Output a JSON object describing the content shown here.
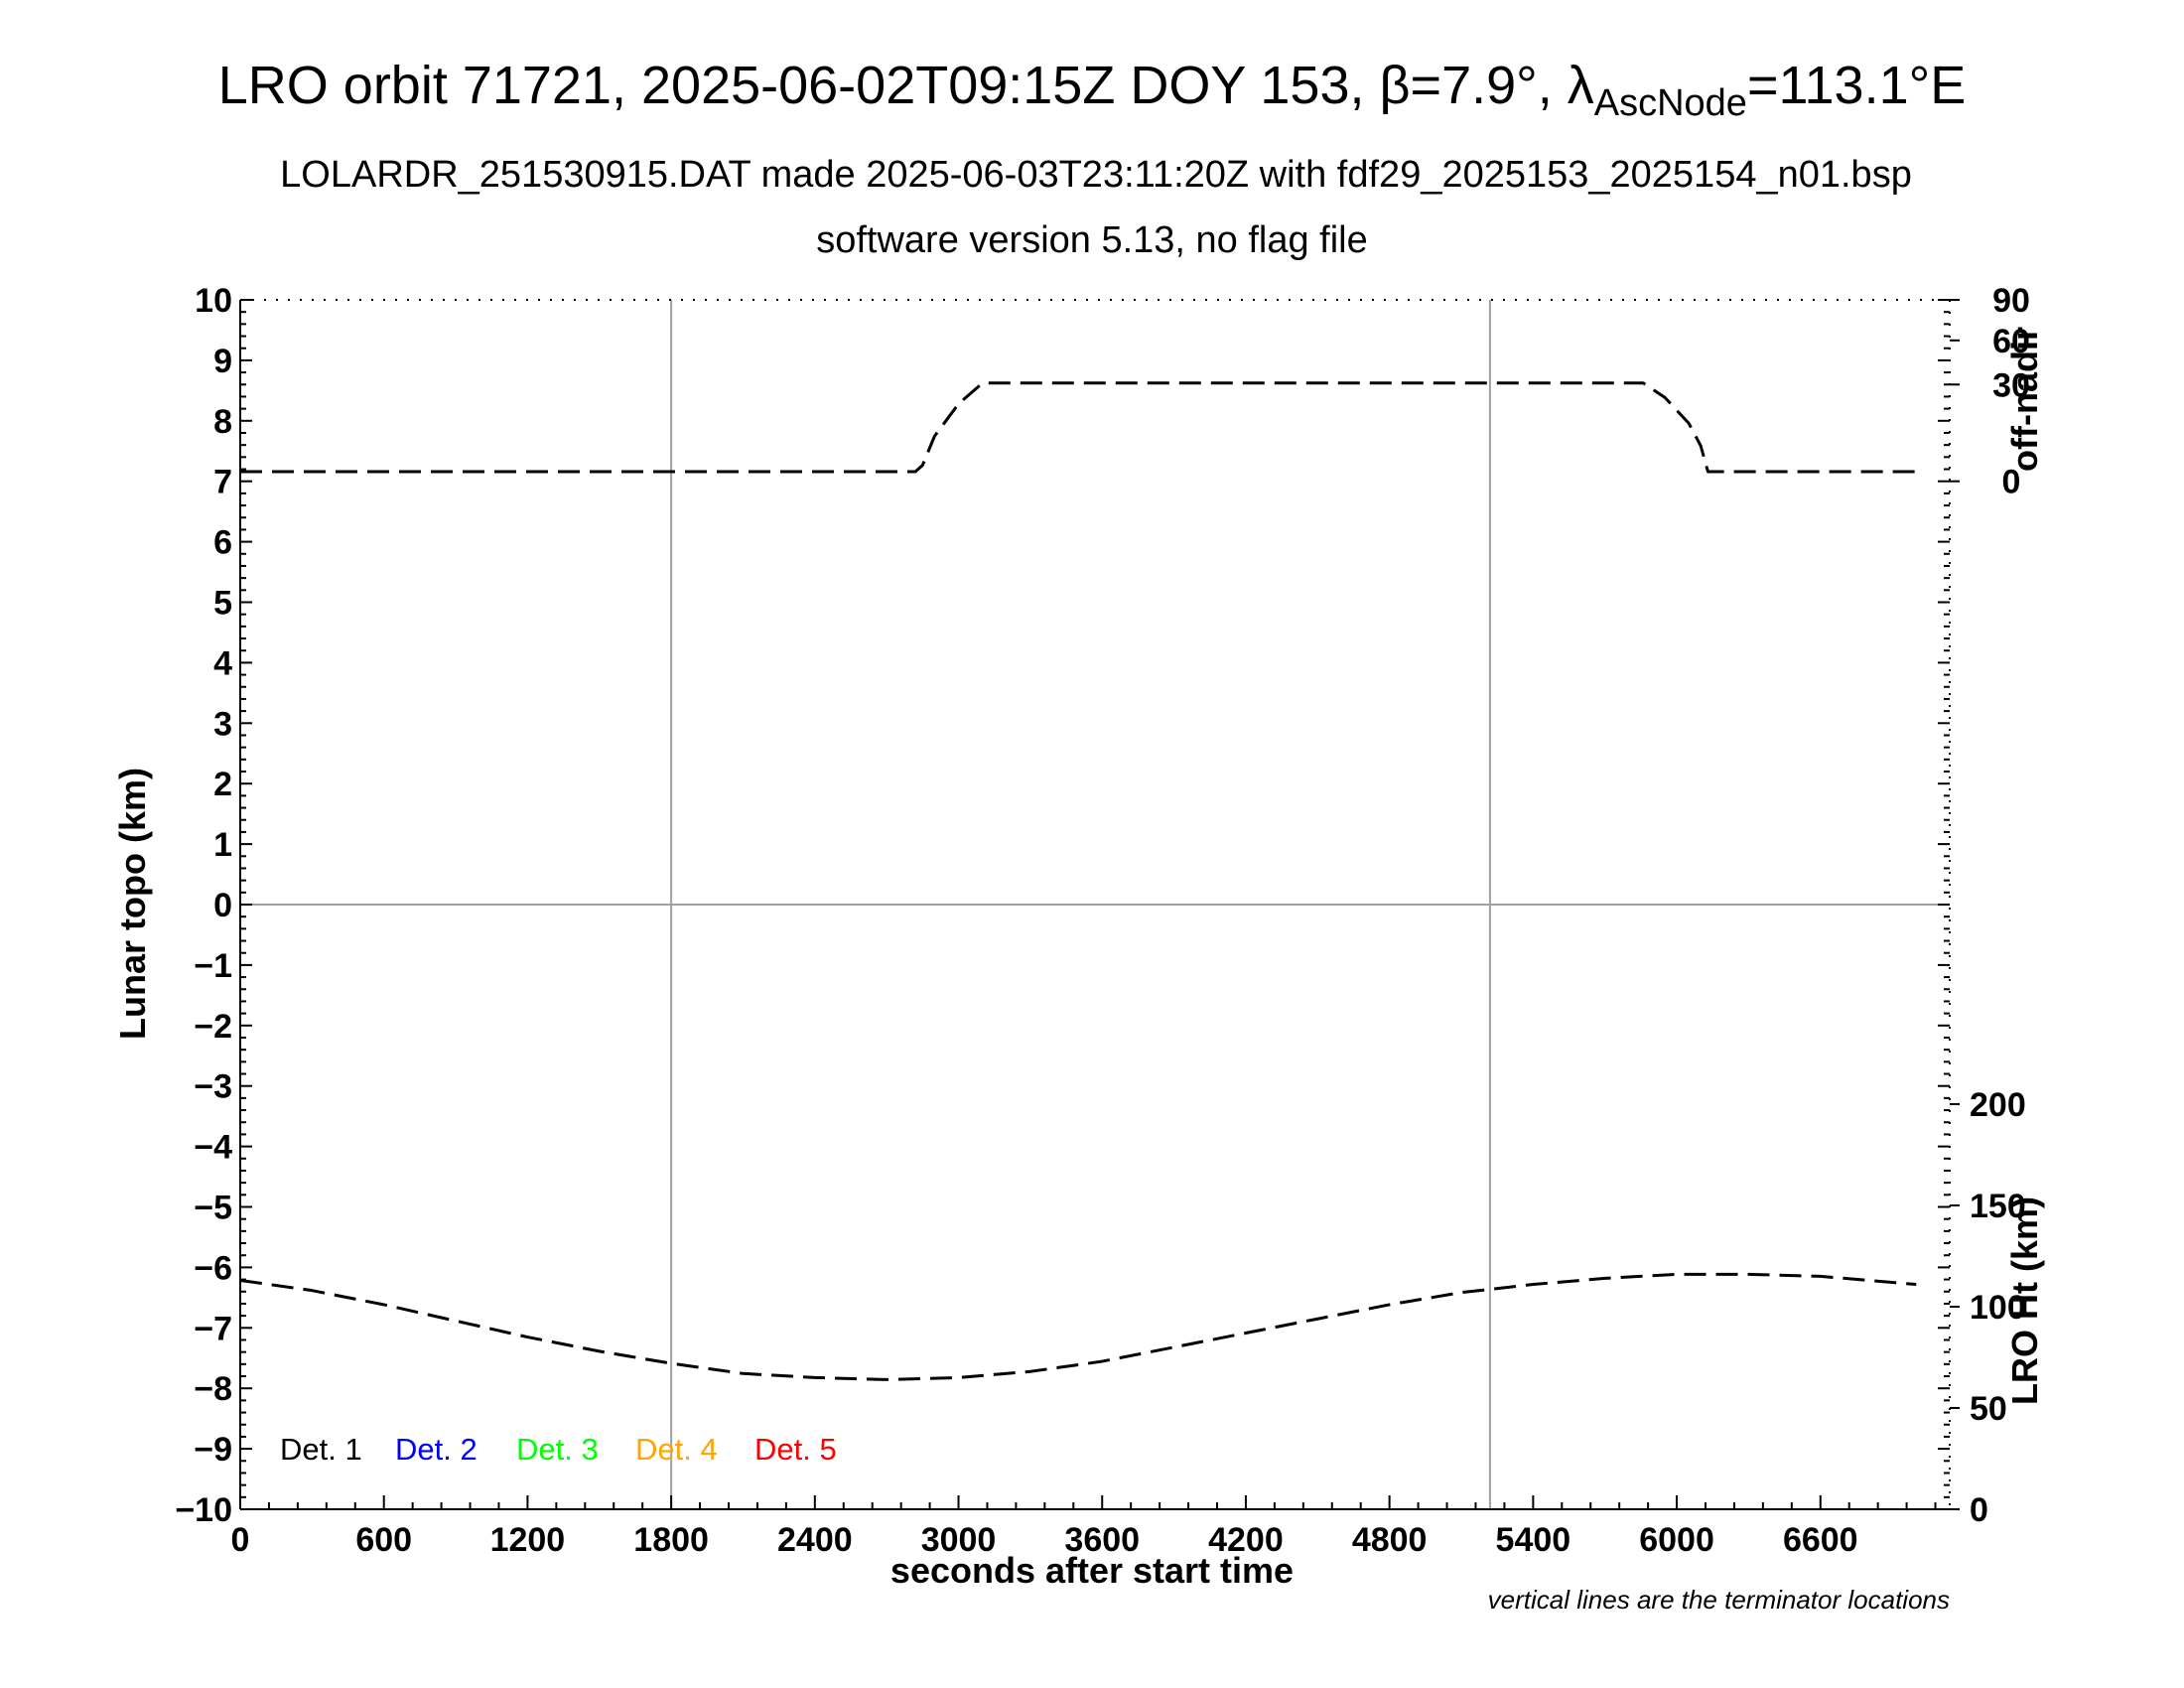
{
  "title": {
    "prefix": "LRO orbit 71721, 2025-06-02T09:15Z DOY 153, ",
    "beta_symbol": "β",
    "beta_value": "=7.9°, ",
    "lambda_symbol": "λ",
    "lambda_subscript": "AscNode",
    "lambda_value": "=113.1°E"
  },
  "subtitle_1": "LOLARDR_251530915.DAT made 2025-06-03T23:11:20Z with fdf29_2025153_2025154_n01.bsp",
  "subtitle_2": "software version 5.13, no flag file",
  "note": "vertical lines are the terminator locations",
  "chart_data": {
    "type": "line",
    "xlabel": "seconds after start time",
    "ylabel_left": "Lunar topo (km)",
    "ylabel_right_top": "off-nadir",
    "ylabel_right_bottom": "LRO Ht (km)",
    "xlim": [
      0,
      7140
    ],
    "ylim": [
      -10,
      10
    ],
    "x_ticks": [
      0,
      600,
      1200,
      1800,
      2400,
      3000,
      3600,
      4200,
      4800,
      5400,
      6000,
      6600
    ],
    "y_ticks_left": [
      10,
      9,
      8,
      7,
      6,
      5,
      4,
      3,
      2,
      1,
      0,
      -1,
      -2,
      -3,
      -4,
      -5,
      -6,
      -7,
      -8,
      -9,
      -10
    ],
    "y_ticks_right_top": [
      90,
      60,
      30,
      0
    ],
    "y_ticks_right_bottom": [
      200,
      150,
      100,
      50,
      0
    ],
    "terminator_lines_x": [
      1800,
      5220
    ],
    "zero_line_y": 0,
    "legend": [
      {
        "label": "Det. 1",
        "color": "#000000"
      },
      {
        "label": "Det. 2",
        "color": "#0000ff"
      },
      {
        "label": "Det. 3",
        "color": "#00ff00"
      },
      {
        "label": "Det. 4",
        "color": "#ffa500"
      },
      {
        "label": "Det. 5",
        "color": "#ff0000"
      }
    ],
    "series": [
      {
        "name": "off-nadir",
        "axis": "right-top",
        "style": "dashed",
        "x": [
          0,
          1000,
          2000,
          2820,
          2850,
          2900,
          3000,
          3100,
          3500,
          4500,
          5500,
          5860,
          5950,
          6050,
          6100,
          6130,
          6200,
          6300,
          7000
        ],
        "y": [
          3,
          3,
          3,
          3,
          5,
          14,
          24,
          31,
          31,
          31,
          31,
          31,
          26,
          18,
          11,
          3,
          3,
          3,
          3
        ]
      },
      {
        "name": "LRO Ht (km)",
        "axis": "right-bottom",
        "style": "dashed",
        "x": [
          0,
          300,
          600,
          900,
          1200,
          1500,
          1800,
          2100,
          2400,
          2700,
          3000,
          3300,
          3600,
          3900,
          4200,
          4500,
          4800,
          5100,
          5400,
          5700,
          6000,
          6300,
          6600,
          6900,
          7000
        ],
        "y": [
          113,
          108,
          101,
          93,
          85,
          78,
          72,
          67,
          65,
          64,
          65,
          68,
          73,
          80,
          87,
          94,
          101,
          107,
          111,
          114,
          116,
          116,
          115,
          112,
          111
        ]
      }
    ]
  }
}
